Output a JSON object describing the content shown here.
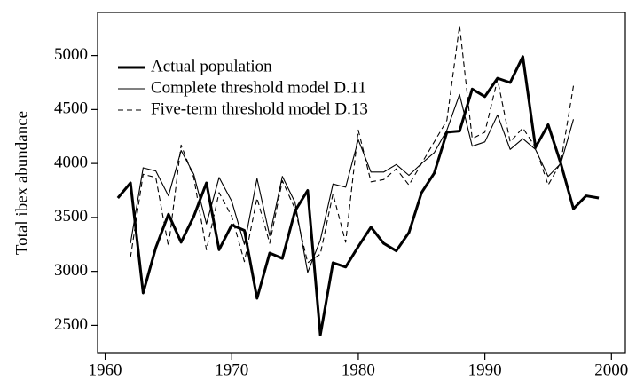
{
  "chart_data": {
    "type": "line",
    "ylabel": "Total ibex abundance",
    "x": [
      1961,
      1962,
      1963,
      1964,
      1965,
      1966,
      1967,
      1968,
      1969,
      1970,
      1971,
      1972,
      1973,
      1974,
      1975,
      1976,
      1977,
      1978,
      1979,
      1980,
      1981,
      1982,
      1983,
      1984,
      1985,
      1986,
      1987,
      1988,
      1989,
      1990,
      1991,
      1992,
      1993,
      1994,
      1995,
      1996,
      1997,
      1998,
      1999
    ],
    "series": [
      {
        "name": "Actual population",
        "color": "#000000",
        "width": 3,
        "dash": "solid",
        "values": [
          3680,
          3820,
          2800,
          3220,
          3530,
          3270,
          3510,
          3820,
          3200,
          3430,
          3380,
          2750,
          3170,
          3120,
          3560,
          3750,
          2410,
          3080,
          3040,
          3230,
          3410,
          3260,
          3190,
          3360,
          3730,
          3910,
          4290,
          4300,
          4690,
          4620,
          4790,
          4750,
          4990,
          4150,
          4360,
          4000,
          3580,
          3700,
          3680
        ]
      },
      {
        "name": "Complete threshold model D.11",
        "color": "#000000",
        "width": 1.1,
        "dash": "solid",
        "values": [
          null,
          3260,
          3960,
          3930,
          3700,
          4120,
          3900,
          3440,
          3870,
          3650,
          3250,
          3860,
          3330,
          3880,
          3640,
          2990,
          3290,
          3810,
          3780,
          4220,
          3920,
          3920,
          3990,
          3890,
          4000,
          4100,
          4310,
          4640,
          4160,
          4200,
          4450,
          4130,
          4230,
          4130,
          3880,
          4000,
          4410,
          null,
          null
        ]
      },
      {
        "name": "Five-term threshold model D.13",
        "color": "#000000",
        "width": 1.1,
        "dash": "dashed",
        "values": [
          null,
          3130,
          3900,
          3870,
          3230,
          4170,
          3870,
          3200,
          3730,
          3510,
          3090,
          3680,
          3260,
          3840,
          3580,
          3080,
          3160,
          3720,
          3270,
          4310,
          3830,
          3850,
          3950,
          3800,
          4000,
          4200,
          4400,
          5280,
          4230,
          4290,
          4780,
          4200,
          4330,
          4150,
          3800,
          4010,
          4720,
          null,
          null
        ]
      }
    ],
    "xlim": [
      1959.4,
      2001.1
    ],
    "xticks": [
      1960,
      1970,
      1980,
      1990,
      2000
    ],
    "ylim": [
      2240,
      5400
    ],
    "yticks": [
      2500,
      3000,
      3500,
      4000,
      4500,
      5000
    ],
    "legend": "top-left",
    "grid": false
  }
}
